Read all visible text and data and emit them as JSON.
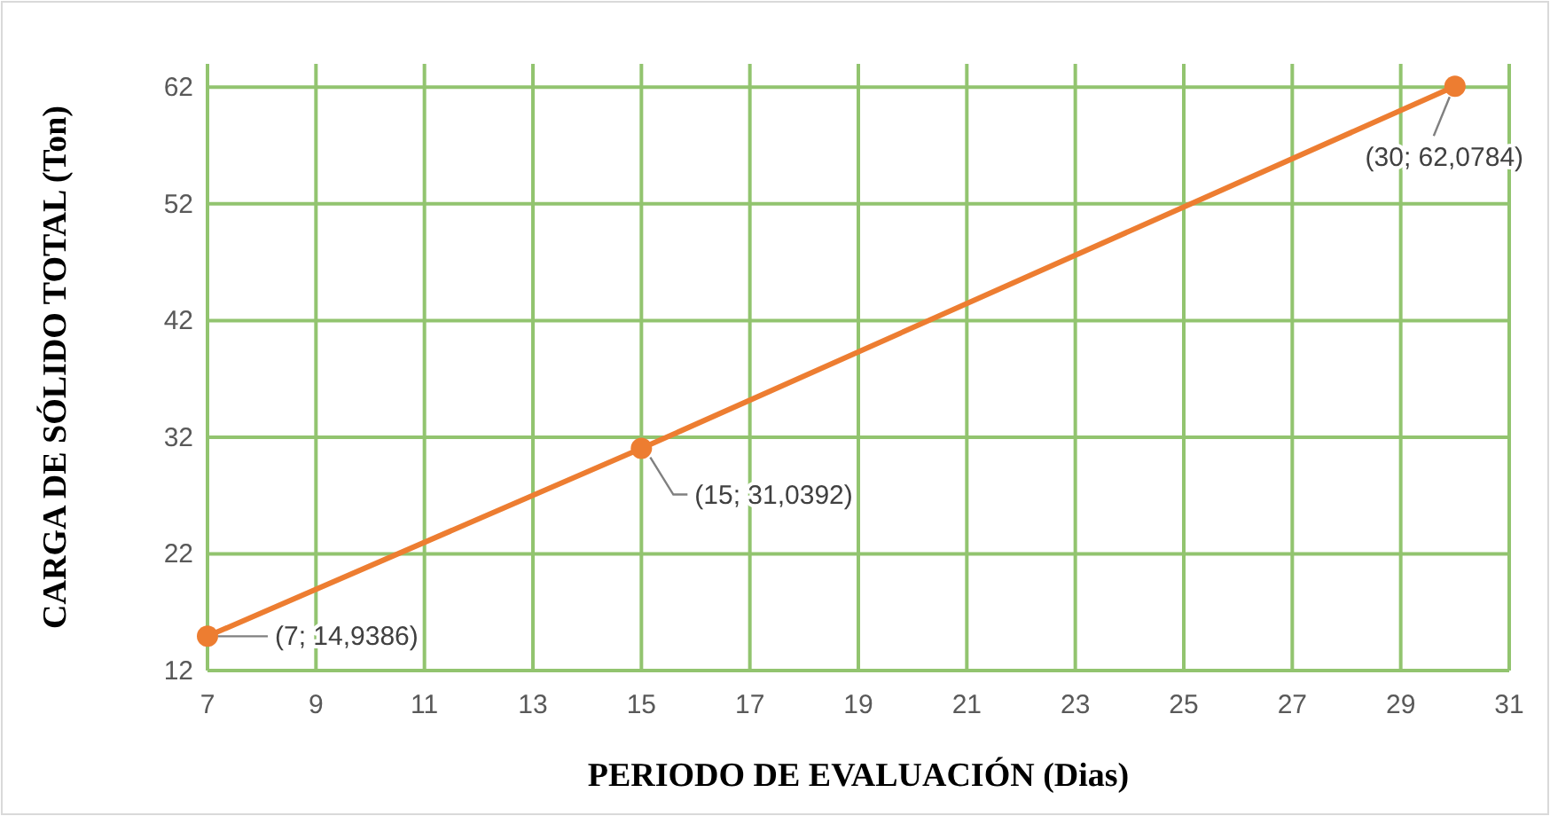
{
  "chart_data": {
    "type": "line",
    "xlabel": "PERIODO DE EVALUACIÓN (Dias)",
    "ylabel": "CARGA DE SÓLIDO TOTAL (Ton)",
    "x": [
      7,
      15,
      30
    ],
    "series": [
      {
        "color": "#ed7d31",
        "values": [
          14.9386,
          31.0392,
          62.0784
        ]
      }
    ],
    "xlim": [
      7,
      31
    ],
    "xticks": [
      7,
      9,
      11,
      13,
      15,
      17,
      19,
      21,
      23,
      25,
      27,
      29,
      31
    ],
    "ylim": [
      12,
      64
    ],
    "yticks": [
      12,
      22,
      32,
      42,
      52,
      62
    ],
    "grid": true,
    "marker": "circle",
    "annotations": [
      {
        "text": "(7; 14,9386)",
        "x": 7,
        "y": 14.9386
      },
      {
        "text": "(15; 31,0392)",
        "x": 15,
        "y": 31.0392
      },
      {
        "text": "(30; 62,0784)",
        "x": 30,
        "y": 62.0784
      }
    ]
  }
}
